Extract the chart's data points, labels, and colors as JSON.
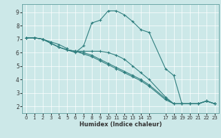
{
  "xlabel": "Humidex (Indice chaleur)",
  "bg_color": "#cce8e8",
  "grid_color": "#ffffff",
  "line_color": "#2d7d7d",
  "xlim": [
    -0.5,
    23.5
  ],
  "ylim": [
    1.5,
    9.6
  ],
  "xticks": [
    0,
    1,
    2,
    3,
    4,
    5,
    6,
    7,
    8,
    9,
    10,
    11,
    12,
    13,
    14,
    15,
    17,
    18,
    19,
    20,
    21,
    22,
    23
  ],
  "yticks": [
    2,
    3,
    4,
    5,
    6,
    7,
    8,
    9
  ],
  "curves": [
    {
      "x": [
        0,
        1,
        2,
        3,
        4,
        5,
        5,
        6,
        7,
        8,
        9,
        10,
        11,
        12,
        13,
        14,
        15,
        17,
        18,
        19,
        20,
        21,
        22,
        23
      ],
      "y": [
        7.1,
        7.1,
        7.0,
        6.8,
        6.6,
        6.3,
        6.2,
        6.0,
        6.5,
        8.2,
        8.4,
        9.1,
        9.1,
        8.8,
        8.3,
        7.7,
        7.5,
        4.8,
        4.3,
        2.2,
        2.2,
        2.2,
        2.4,
        2.2
      ]
    },
    {
      "x": [
        0,
        1,
        2,
        3,
        4,
        5,
        6,
        7,
        8,
        9,
        10,
        11,
        12,
        13,
        14,
        15,
        17,
        18,
        19,
        20,
        21,
        22,
        23
      ],
      "y": [
        7.1,
        7.1,
        7.0,
        6.7,
        6.4,
        6.2,
        6.1,
        6.1,
        6.1,
        6.1,
        6.0,
        5.8,
        5.5,
        5.0,
        4.5,
        4.0,
        2.7,
        2.2,
        2.2,
        2.2,
        2.2,
        2.4,
        2.2
      ]
    },
    {
      "x": [
        0,
        1,
        2,
        3,
        4,
        5,
        6,
        7,
        8,
        9,
        10,
        11,
        12,
        13,
        14,
        15,
        17,
        18,
        19,
        20,
        21,
        22,
        23
      ],
      "y": [
        7.1,
        7.1,
        7.0,
        6.7,
        6.4,
        6.2,
        6.1,
        6.0,
        5.8,
        5.5,
        5.2,
        4.9,
        4.6,
        4.3,
        4.0,
        3.6,
        2.6,
        2.2,
        2.2,
        2.2,
        2.2,
        2.4,
        2.2
      ]
    },
    {
      "x": [
        0,
        1,
        2,
        3,
        4,
        5,
        6,
        7,
        8,
        9,
        10,
        11,
        12,
        13,
        14,
        15,
        17,
        18,
        19,
        20,
        21,
        22,
        23
      ],
      "y": [
        7.1,
        7.1,
        7.0,
        6.7,
        6.4,
        6.2,
        6.1,
        5.9,
        5.7,
        5.4,
        5.1,
        4.8,
        4.5,
        4.2,
        3.9,
        3.5,
        2.5,
        2.2,
        2.2,
        2.2,
        2.2,
        2.4,
        2.2
      ]
    }
  ]
}
